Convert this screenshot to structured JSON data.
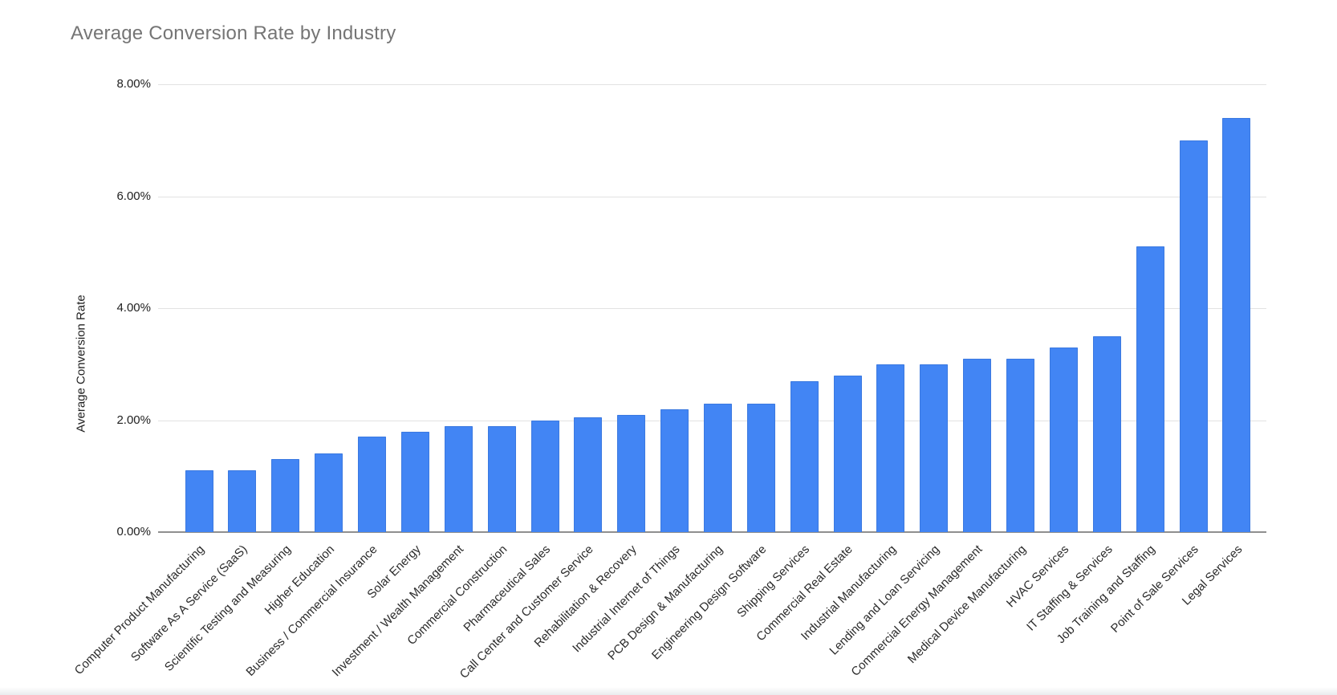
{
  "chart_data": {
    "type": "bar",
    "title": "Average Conversion Rate by Industry",
    "xlabel": "",
    "ylabel": "Average Conversion Rate",
    "ylim": [
      0,
      8
    ],
    "y_tick_values": [
      0,
      2,
      4,
      6,
      8
    ],
    "y_tick_labels": [
      "0.00%",
      "2.00%",
      "4.00%",
      "6.00%",
      "8.00%"
    ],
    "grid": true,
    "legend": false,
    "bar_color": "#4285f4",
    "value_unit": "percent",
    "categories": [
      "Computer Product Manufacturing",
      "Software As A Service (SaaS)",
      "Scientific Testing and Measuring",
      "Higher Education",
      "Business / Commercial Insurance",
      "Solar Energy",
      "Investment / Wealth Management",
      "Commercial Construction",
      "Pharmaceutical Sales",
      "Call Center and Customer Service",
      "Rehabilitation & Recovery",
      "Industrial Internet of Things",
      "PCB Design & Manufacturing",
      "Engineering Design Software",
      "Shipping Services",
      "Commercial Real Estate",
      "Industrial Manufacturing",
      "Lending and Loan Servicing",
      "Commercial Energy Management",
      "Medical Device Manufacturing",
      "HVAC Services",
      "IT Staffing & Services",
      "Job Training and Staffing",
      "Point of Sale Services",
      "Legal Services"
    ],
    "values": [
      1.1,
      1.1,
      1.3,
      1.4,
      1.7,
      1.8,
      1.9,
      1.9,
      2.0,
      2.05,
      2.1,
      2.2,
      2.3,
      2.3,
      2.7,
      2.8,
      3.0,
      3.0,
      3.1,
      3.1,
      3.3,
      3.5,
      5.1,
      7.0,
      7.4
    ]
  }
}
